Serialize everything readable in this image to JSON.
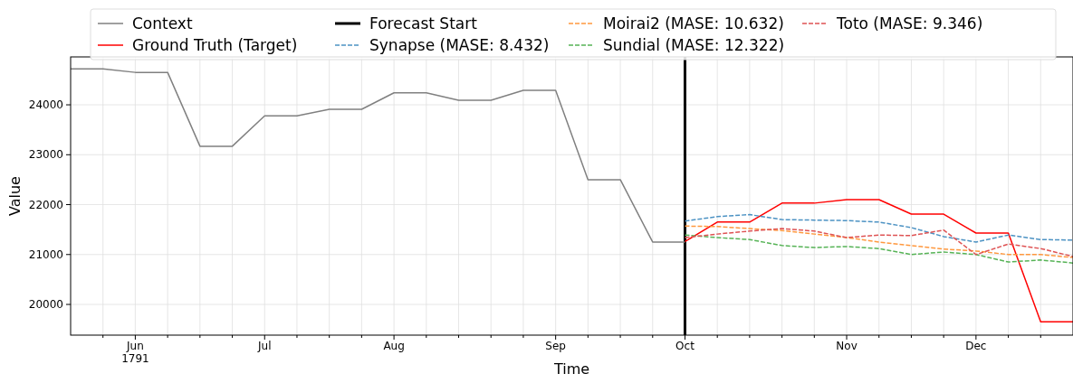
{
  "chart_data": {
    "type": "line",
    "xlabel": "Time",
    "ylabel": "Value",
    "xlim": [
      "1791-05-26",
      "1791-12-29"
    ],
    "ylim": [
      19385,
      24960
    ],
    "xticks": [
      {
        "value": "1791-06-02",
        "label": null
      },
      {
        "value": "1791-06-09",
        "label": "Jun\n1791"
      },
      {
        "value": "1791-06-16",
        "label": null
      },
      {
        "value": "1791-06-23",
        "label": null
      },
      {
        "value": "1791-06-30",
        "label": null
      },
      {
        "value": "1791-07-07",
        "label": "Jul"
      },
      {
        "value": "1791-07-14",
        "label": null
      },
      {
        "value": "1791-07-21",
        "label": null
      },
      {
        "value": "1791-07-28",
        "label": null
      },
      {
        "value": "1791-08-04",
        "label": "Aug"
      },
      {
        "value": "1791-08-11",
        "label": null
      },
      {
        "value": "1791-08-18",
        "label": null
      },
      {
        "value": "1791-08-25",
        "label": null
      },
      {
        "value": "1791-09-01",
        "label": null
      },
      {
        "value": "1791-09-08",
        "label": "Sep"
      },
      {
        "value": "1791-09-15",
        "label": null
      },
      {
        "value": "1791-09-22",
        "label": null
      },
      {
        "value": "1791-09-29",
        "label": null
      },
      {
        "value": "1791-10-06",
        "label": "Oct"
      },
      {
        "value": "1791-10-13",
        "label": null
      },
      {
        "value": "1791-10-20",
        "label": null
      },
      {
        "value": "1791-10-27",
        "label": null
      },
      {
        "value": "1791-11-03",
        "label": null
      },
      {
        "value": "1791-11-10",
        "label": "Nov"
      },
      {
        "value": "1791-11-17",
        "label": null
      },
      {
        "value": "1791-11-24",
        "label": null
      },
      {
        "value": "1791-12-01",
        "label": null
      },
      {
        "value": "1791-12-08",
        "label": "Dec"
      },
      {
        "value": "1791-12-15",
        "label": null
      },
      {
        "value": "1791-12-22",
        "label": null
      }
    ],
    "yticks": [
      20000,
      21000,
      22000,
      23000,
      24000
    ],
    "grid": true,
    "legend": "top",
    "series": [
      {
        "name": "Context",
        "color": "#808080",
        "line_style": "solid",
        "x": [
          "1791-05-26",
          "1791-06-02",
          "1791-06-09",
          "1791-06-16",
          "1791-06-23",
          "1791-06-30",
          "1791-07-07",
          "1791-07-14",
          "1791-07-21",
          "1791-07-28",
          "1791-08-04",
          "1791-08-11",
          "1791-08-18",
          "1791-08-25",
          "1791-09-01",
          "1791-09-08",
          "1791-09-15",
          "1791-09-22",
          "1791-09-29",
          "1791-10-06"
        ],
        "values": [
          24720,
          24720,
          24650,
          24650,
          23170,
          23170,
          23780,
          23780,
          23910,
          23910,
          24240,
          24240,
          24090,
          24090,
          24290,
          24290,
          22500,
          22500,
          21250,
          21250
        ]
      },
      {
        "name": "Ground Truth (Target)",
        "color": "#ff0000",
        "line_style": "solid",
        "x": [
          "1791-10-06",
          "1791-10-13",
          "1791-10-20",
          "1791-10-27",
          "1791-11-03",
          "1791-11-10",
          "1791-11-17",
          "1791-11-24",
          "1791-12-01",
          "1791-12-08",
          "1791-12-15",
          "1791-12-22",
          "1791-12-29"
        ],
        "values": [
          21260,
          21650,
          21650,
          22030,
          22030,
          22100,
          22100,
          21810,
          21810,
          21430,
          21430,
          19650,
          19650
        ]
      },
      {
        "name": "Synapse (MASE: 8.432)",
        "color": "#4c92c3",
        "line_style": "dashed",
        "x": [
          "1791-10-06",
          "1791-10-13",
          "1791-10-20",
          "1791-10-27",
          "1791-11-03",
          "1791-11-10",
          "1791-11-17",
          "1791-11-24",
          "1791-12-01",
          "1791-12-08",
          "1791-12-15",
          "1791-12-22",
          "1791-12-29"
        ],
        "values": [
          21670,
          21760,
          21800,
          21700,
          21690,
          21680,
          21650,
          21540,
          21360,
          21250,
          21390,
          21300,
          21290
        ]
      },
      {
        "name": "Moirai2 (MASE: 10.632)",
        "color": "#ff983e",
        "line_style": "dashed",
        "x": [
          "1791-10-06",
          "1791-10-13",
          "1791-10-20",
          "1791-10-27",
          "1791-11-03",
          "1791-11-10",
          "1791-11-17",
          "1791-11-24",
          "1791-12-01",
          "1791-12-08",
          "1791-12-15",
          "1791-12-22",
          "1791-12-29"
        ],
        "values": [
          21570,
          21560,
          21520,
          21480,
          21410,
          21340,
          21250,
          21180,
          21110,
          21070,
          21000,
          21000,
          20940
        ]
      },
      {
        "name": "Sundial (MASE: 12.322)",
        "color": "#56b356",
        "line_style": "dashed",
        "x": [
          "1791-10-06",
          "1791-10-13",
          "1791-10-20",
          "1791-10-27",
          "1791-11-03",
          "1791-11-10",
          "1791-11-17",
          "1791-11-24",
          "1791-12-01",
          "1791-12-08",
          "1791-12-15",
          "1791-12-22",
          "1791-12-29"
        ],
        "values": [
          21390,
          21340,
          21300,
          21180,
          21140,
          21160,
          21120,
          21000,
          21050,
          21000,
          20850,
          20890,
          20830
        ]
      },
      {
        "name": "Toto (MASE: 9.346)",
        "color": "#de5253",
        "line_style": "dashed",
        "x": [
          "1791-10-06",
          "1791-10-13",
          "1791-10-20",
          "1791-10-27",
          "1791-11-03",
          "1791-11-10",
          "1791-11-17",
          "1791-11-24",
          "1791-12-01",
          "1791-12-08",
          "1791-12-15",
          "1791-12-22",
          "1791-12-29"
        ],
        "values": [
          21340,
          21410,
          21470,
          21520,
          21470,
          21340,
          21390,
          21380,
          21490,
          21000,
          21210,
          21120,
          20960
        ]
      }
    ],
    "ref_lines": [
      {
        "axis": "x",
        "value": "1791-10-06",
        "label": "Forecast Start",
        "color": "#000000",
        "line_style": "solid"
      }
    ]
  }
}
